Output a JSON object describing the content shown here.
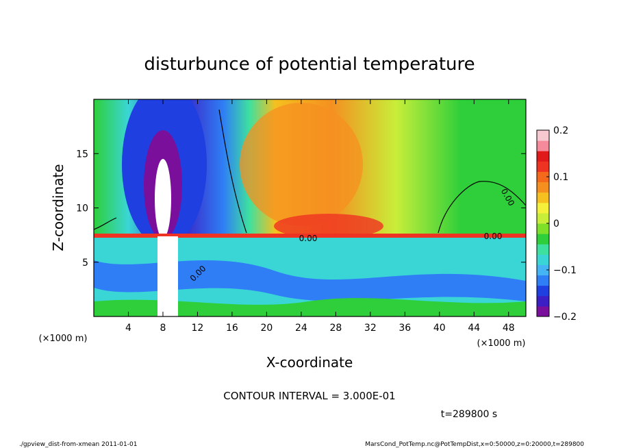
{
  "chart_data": {
    "type": "heatmap",
    "title": "disturbunce of potential temperature",
    "xlabel": "X-coordinate",
    "ylabel": "Z-coordinate",
    "x_unit": "(×1000 m)",
    "y_unit": "(×1000 m)",
    "xlim": [
      0,
      50
    ],
    "ylim": [
      0,
      20
    ],
    "x_ticks": [
      4,
      8,
      12,
      16,
      20,
      24,
      28,
      32,
      36,
      40,
      44,
      48
    ],
    "y_ticks": [
      5,
      10,
      15
    ],
    "colorbar": {
      "range": [
        -0.2,
        0.2
      ],
      "tick_values": [
        0.2,
        0.1,
        0,
        -0.1,
        -0.2
      ],
      "tick_labels": [
        "0.2",
        "0.1",
        "0",
        "−0.1",
        "−0.2"
      ],
      "colors": [
        "#7a0f9c",
        "#3b1fc4",
        "#1f3fe0",
        "#2f7ef5",
        "#45b4f5",
        "#3ad6d6",
        "#3ee0a0",
        "#2ecf3a",
        "#7fe02a",
        "#c8ee3a",
        "#f5f03a",
        "#f5c020",
        "#f59020",
        "#f56a1a",
        "#ef3322",
        "#e01a1a",
        "#f58a9a",
        "#f7c8d0"
      ]
    },
    "contour_labels": [
      "0.00",
      "0.00",
      "0.00",
      "0.00"
    ],
    "annotations": [
      "CONTOUR INTERVAL = 3.000E-01",
      "t=289800 s"
    ]
  },
  "footer": {
    "left": "./gpview_dist-from-xmean  2011-01-01",
    "right": "MarsCond_PotTemp.nc@PotTempDist,x=0:50000,z=0:20000,t=289800"
  }
}
